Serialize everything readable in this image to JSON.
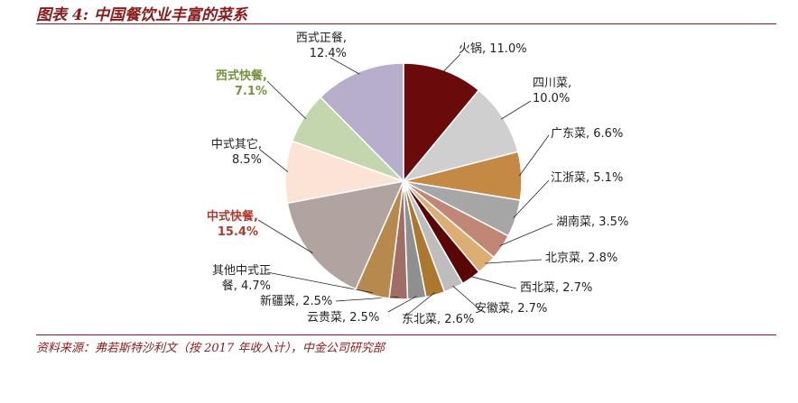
{
  "title": "图表 4:  中国餐饮业丰富的菜系",
  "source": "资料来源：弗若斯特沙利文（按 2017 年收入计），中金公司研究部",
  "chart_data": {
    "type": "pie",
    "title": "",
    "slices": [
      {
        "name": "火锅",
        "value": 11.0,
        "label": "11.0%",
        "color": "#6b0a0a",
        "label_lines": [
          "火锅, 11.0%"
        ]
      },
      {
        "name": "四川菜",
        "value": 10.0,
        "label": "10.0%",
        "color": "#cfcfcf",
        "label_lines": [
          "四川菜,",
          "10.0%"
        ]
      },
      {
        "name": "广东菜",
        "value": 6.6,
        "label": "6.6%",
        "color": "#c48a45",
        "label_lines": [
          "广东菜, 6.6%"
        ]
      },
      {
        "name": "江浙菜",
        "value": 5.1,
        "label": "5.1%",
        "color": "#a6a6a6",
        "label_lines": [
          "江浙菜, 5.1%"
        ]
      },
      {
        "name": "湖南菜",
        "value": 3.5,
        "label": "3.5%",
        "color": "#c08777",
        "label_lines": [
          "湖南菜, 3.5%"
        ]
      },
      {
        "name": "北京菜",
        "value": 2.8,
        "label": "2.8%",
        "color": "#dcae74",
        "label_lines": [
          "北京菜, 2.8%"
        ]
      },
      {
        "name": "西北菜",
        "value": 2.7,
        "label": "2.7%",
        "color": "#5a0606",
        "label_lines": [
          "西北菜, 2.7%"
        ]
      },
      {
        "name": "安徽菜",
        "value": 2.7,
        "label": "2.7%",
        "color": "#bdbdbd",
        "label_lines": [
          "安徽菜, 2.7%"
        ]
      },
      {
        "name": "东北菜",
        "value": 2.6,
        "label": "2.6%",
        "color": "#ab782f",
        "label_lines": [
          "东北菜, 2.6%"
        ]
      },
      {
        "name": "云贵菜",
        "value": 2.5,
        "label": "2.5%",
        "color": "#8f8f8f",
        "label_lines": [
          "云贵菜, 2.5%"
        ]
      },
      {
        "name": "新疆菜",
        "value": 2.5,
        "label": "2.5%",
        "color": "#a06e64",
        "label_lines": [
          "新疆菜, 2.5%"
        ]
      },
      {
        "name": "其他中式正餐",
        "value": 4.7,
        "label": "4.7%",
        "color": "#b8894d",
        "label_lines": [
          "其他中式正",
          "餐, 4.7%"
        ]
      },
      {
        "name": "中式快餐",
        "value": 15.4,
        "label": "15.4%",
        "color": "#b0a3a0",
        "label_lines": [
          "中式快餐,",
          "15.4%"
        ],
        "label_color": "#b03a2e",
        "bold": true
      },
      {
        "name": "中式其它",
        "value": 8.5,
        "label": "8.5%",
        "color": "#fbe3d6",
        "label_lines": [
          "中式其它,",
          "8.5%"
        ]
      },
      {
        "name": "西式快餐",
        "value": 7.1,
        "label": "7.1%",
        "color": "#c3d6ad",
        "label_lines": [
          "西式快餐,",
          "7.1%"
        ],
        "label_color": "#76923c",
        "bold": true
      },
      {
        "name": "西式正餐",
        "value": 12.4,
        "label": "12.4%",
        "color": "#b6aecb",
        "label_lines": [
          "西式正餐,",
          "12.4%"
        ]
      }
    ]
  }
}
